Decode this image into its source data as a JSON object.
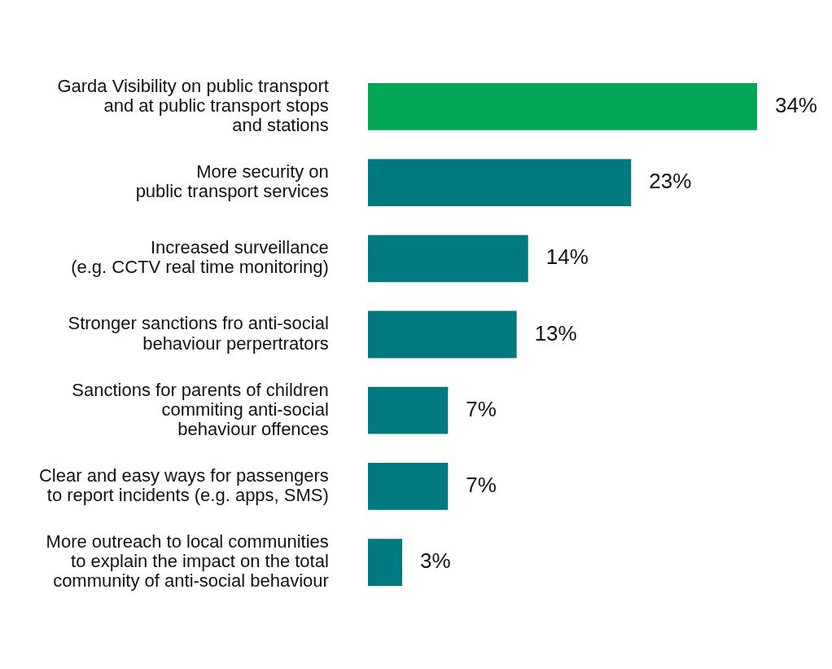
{
  "chart_data": {
    "type": "bar",
    "orientation": "horizontal",
    "data_labels": true,
    "categories": [
      "Garda Visibility on public transport\nand at public transport stops\nand stations",
      "More security on\npublic transport services",
      "Increased surveillance\n(e.g. CCTV real time monitoring)",
      "Stronger sanctions fro anti-social\nbehaviour perpertrators",
      "Sanctions for parents of children\ncommiting anti-social\nbehaviour offences",
      "Clear and easy ways for passengers\nto report incidents (e.g. apps, SMS)",
      "More outreach to local communities\nto explain the impact on the total\ncommunity of anti-social behaviour"
    ],
    "values": [
      34,
      23,
      14,
      13,
      7,
      7,
      3
    ],
    "value_labels": [
      "34%",
      "23%",
      "14%",
      "13%",
      "7%",
      "7%",
      "3%"
    ],
    "colors": [
      "#00a651",
      "#007a80",
      "#007a80",
      "#007a80",
      "#007a80",
      "#007a80",
      "#007a80"
    ]
  }
}
